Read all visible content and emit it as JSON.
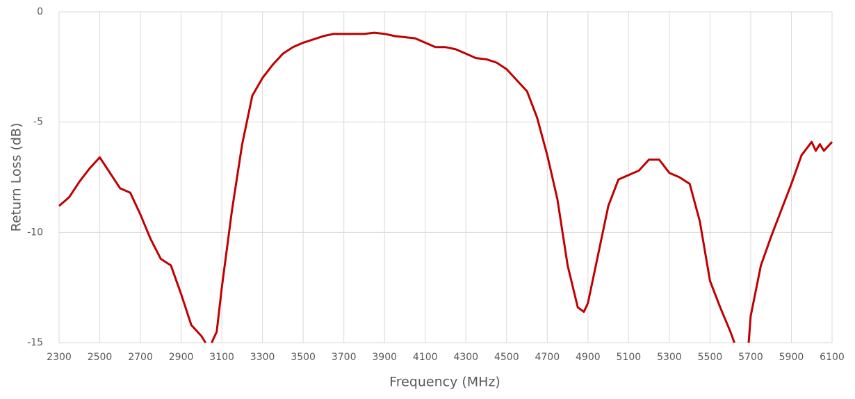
{
  "chart_data": {
    "type": "line",
    "x_label": "Frequency (MHz)",
    "y_label": "Return Loss (dB)",
    "x": [
      2300,
      2350,
      2400,
      2450,
      2500,
      2550,
      2600,
      2650,
      2700,
      2750,
      2800,
      2850,
      2900,
      2950,
      3000,
      3020,
      3035,
      3050,
      3075,
      3100,
      3150,
      3200,
      3250,
      3300,
      3350,
      3400,
      3450,
      3500,
      3550,
      3600,
      3650,
      3700,
      3750,
      3800,
      3850,
      3900,
      3950,
      4000,
      4050,
      4100,
      4150,
      4200,
      4250,
      4300,
      4350,
      4400,
      4450,
      4500,
      4550,
      4600,
      4650,
      4700,
      4750,
      4800,
      4850,
      4880,
      4900,
      4950,
      5000,
      5050,
      5100,
      5150,
      5200,
      5250,
      5300,
      5350,
      5400,
      5450,
      5500,
      5550,
      5600,
      5620,
      5655,
      5690,
      5700,
      5750,
      5800,
      5850,
      5900,
      5950,
      6000,
      6020,
      6040,
      6060,
      6100
    ],
    "series": [
      {
        "name": "Return Loss",
        "color": "#c00000",
        "values": [
          -8.8,
          -8.4,
          -7.7,
          -7.1,
          -6.6,
          -7.3,
          -8.0,
          -8.2,
          -9.2,
          -10.3,
          -11.2,
          -11.5,
          -12.8,
          -14.2,
          -14.7,
          -15,
          null,
          -15,
          -14.5,
          -12.5,
          -9,
          -6,
          -3.8,
          -3.0,
          -2.4,
          -1.9,
          -1.6,
          -1.4,
          -1.25,
          -1.1,
          -1.0,
          -1.0,
          -1.0,
          -1.0,
          -0.95,
          -1.0,
          -1.1,
          -1.15,
          -1.2,
          -1.4,
          -1.6,
          -1.6,
          -1.7,
          -1.9,
          -2.1,
          -2.15,
          -2.3,
          -2.6,
          -3.1,
          -3.6,
          -4.8,
          -6.5,
          -8.5,
          -11.5,
          -13.4,
          -13.6,
          -13.2,
          -11.0,
          -8.8,
          -7.6,
          -7.4,
          -7.2,
          -6.7,
          -6.7,
          -7.3,
          -7.5,
          -7.8,
          -9.5,
          -12.2,
          -13.4,
          -14.5,
          -15,
          null,
          -15,
          -13.8,
          -11.5,
          -10.2,
          -9,
          -7.8,
          -6.5,
          -5.9,
          -6.3,
          -6.0,
          -6.3,
          -5.9
        ]
      }
    ],
    "xlim": [
      2300,
      6100
    ],
    "xticks": [
      2300,
      2500,
      2700,
      2900,
      3100,
      3300,
      3500,
      3700,
      3900,
      4100,
      4300,
      4500,
      4700,
      4900,
      5100,
      5300,
      5500,
      5700,
      5900,
      6100
    ],
    "ylim": [
      -15,
      0
    ],
    "yticks": [
      0,
      -5,
      -10,
      -15
    ],
    "grid": true
  }
}
